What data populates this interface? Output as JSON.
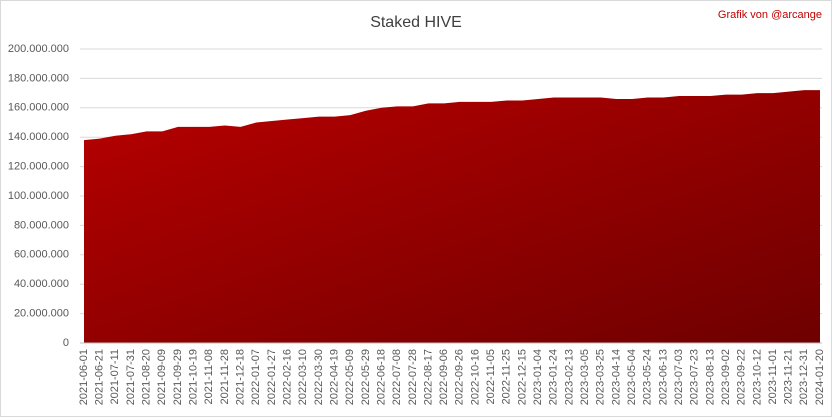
{
  "chart_data": {
    "type": "area",
    "title": "Staked HIVE",
    "annotation": "Grafik von @arcange",
    "categories": [
      "2021-06-01",
      "2021-06-21",
      "2021-07-11",
      "2021-07-31",
      "2021-08-20",
      "2021-09-09",
      "2021-09-29",
      "2021-10-19",
      "2021-11-08",
      "2021-11-28",
      "2021-12-18",
      "2022-01-07",
      "2022-01-27",
      "2022-02-16",
      "2022-03-10",
      "2022-03-30",
      "2022-04-19",
      "2022-05-09",
      "2022-05-29",
      "2022-06-18",
      "2022-07-08",
      "2022-07-28",
      "2022-08-17",
      "2022-09-06",
      "2022-09-26",
      "2022-10-16",
      "2022-11-05",
      "2022-11-25",
      "2022-12-15",
      "2023-01-04",
      "2023-01-24",
      "2023-02-13",
      "2023-03-05",
      "2023-03-25",
      "2023-04-14",
      "2023-05-04",
      "2023-05-24",
      "2023-06-13",
      "2023-07-03",
      "2023-07-23",
      "2023-08-13",
      "2023-09-02",
      "2023-09-22",
      "2023-10-12",
      "2023-11-01",
      "2023-11-21",
      "2023-12-31",
      "2024-01-20"
    ],
    "values": [
      138000000,
      139000000,
      141000000,
      142000000,
      144000000,
      144000000,
      147000000,
      147000000,
      147000000,
      148000000,
      147000000,
      150000000,
      151000000,
      152000000,
      153000000,
      154000000,
      154000000,
      155000000,
      158000000,
      160000000,
      161000000,
      161000000,
      163000000,
      163000000,
      164000000,
      164000000,
      164000000,
      165000000,
      165000000,
      166000000,
      167000000,
      167000000,
      167000000,
      167000000,
      166000000,
      166000000,
      167000000,
      167000000,
      168000000,
      168000000,
      168000000,
      169000000,
      169000000,
      170000000,
      170000000,
      171000000,
      172000000,
      172000000
    ],
    "color": "#b80000",
    "ylim": [
      0,
      200000000
    ],
    "yticks": [
      0,
      {
        "value": 20000000,
        "label": "20.000.000"
      },
      {
        "value": 40000000,
        "label": "40.000.000"
      },
      {
        "value": 60000000,
        "label": "60.000.000"
      },
      {
        "value": 80000000,
        "label": "80.000.000"
      },
      {
        "value": 100000000,
        "label": "100.000.000"
      },
      {
        "value": 120000000,
        "label": "120.000.000"
      },
      {
        "value": 140000000,
        "label": "140.000.000"
      },
      {
        "value": 160000000,
        "label": "160.000.000"
      },
      {
        "value": 180000000,
        "label": "180.000.000"
      },
      {
        "value": 200000000,
        "label": "200.000.000"
      }
    ],
    "grid": true
  }
}
